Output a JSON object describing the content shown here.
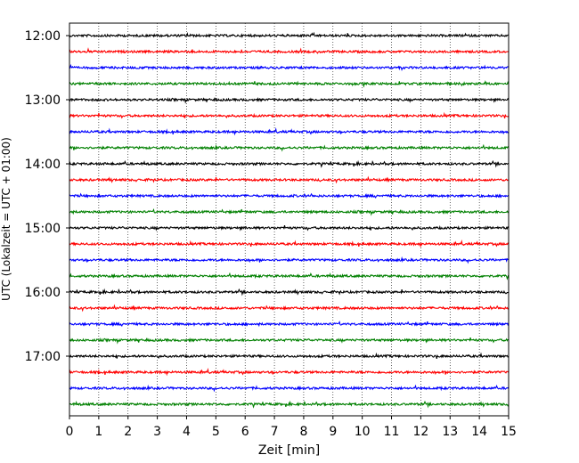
{
  "chart_data": {
    "type": "line",
    "description": "Seismogram helicorder plot, one trace per 15-minute segment, colors cycle black/red/blue/green",
    "xlabel": "Zeit  [min]",
    "ylabel": "UTC (Lokalzeit = UTC + 01:00)",
    "xlim": [
      0,
      15
    ],
    "x_ticks": [
      "0",
      "1",
      "2",
      "3",
      "4",
      "5",
      "6",
      "7",
      "8",
      "9",
      "10",
      "11",
      "12",
      "13",
      "14",
      "15"
    ],
    "y_ticks": [
      "12:00",
      "13:00",
      "14:00",
      "15:00",
      "16:00",
      "17:00"
    ],
    "grid": "vertical dotted lines at each minute",
    "trace_colors": [
      "#000000",
      "#ff0000",
      "#0000ff",
      "#008000"
    ],
    "traces": [
      {
        "start": "12:00",
        "color": "#000000"
      },
      {
        "start": "12:15",
        "color": "#ff0000"
      },
      {
        "start": "12:30",
        "color": "#0000ff"
      },
      {
        "start": "12:45",
        "color": "#008000"
      },
      {
        "start": "13:00",
        "color": "#000000"
      },
      {
        "start": "13:15",
        "color": "#ff0000"
      },
      {
        "start": "13:30",
        "color": "#0000ff"
      },
      {
        "start": "13:45",
        "color": "#008000"
      },
      {
        "start": "14:00",
        "color": "#000000"
      },
      {
        "start": "14:15",
        "color": "#ff0000"
      },
      {
        "start": "14:30",
        "color": "#0000ff"
      },
      {
        "start": "14:45",
        "color": "#008000"
      },
      {
        "start": "15:00",
        "color": "#000000"
      },
      {
        "start": "15:15",
        "color": "#ff0000"
      },
      {
        "start": "15:30",
        "color": "#0000ff"
      },
      {
        "start": "15:45",
        "color": "#008000"
      },
      {
        "start": "16:00",
        "color": "#000000"
      },
      {
        "start": "16:15",
        "color": "#ff0000"
      },
      {
        "start": "16:30",
        "color": "#0000ff"
      },
      {
        "start": "16:45",
        "color": "#008000"
      },
      {
        "start": "17:00",
        "color": "#000000"
      },
      {
        "start": "17:15",
        "color": "#ff0000"
      },
      {
        "start": "17:30",
        "color": "#0000ff"
      },
      {
        "start": "17:45",
        "color": "#008000"
      }
    ]
  }
}
